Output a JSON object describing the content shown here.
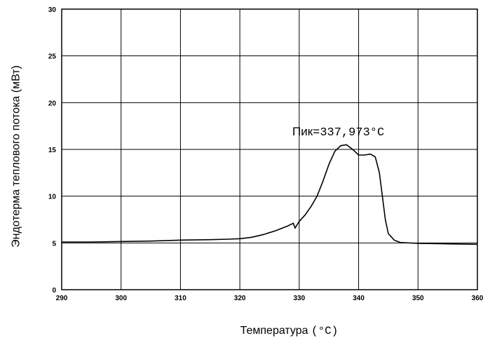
{
  "chart_data": {
    "type": "line",
    "title": "",
    "xlabel": "Температура",
    "xlabel_unit": "(°C)",
    "ylabel": "Эндотерма теплового потока (мВт)",
    "xlim": [
      290,
      360
    ],
    "ylim": [
      0,
      30
    ],
    "x_ticks": [
      290,
      300,
      310,
      320,
      330,
      340,
      350,
      360
    ],
    "y_ticks": [
      0,
      5,
      10,
      15,
      20,
      25,
      30
    ],
    "grid": true,
    "annotation": {
      "label": "Пик",
      "value": "=337,973°C",
      "x": 337.973
    },
    "series": [
      {
        "points": [
          [
            290,
            5.1
          ],
          [
            295,
            5.1
          ],
          [
            300,
            5.15
          ],
          [
            305,
            5.2
          ],
          [
            310,
            5.3
          ],
          [
            315,
            5.35
          ],
          [
            318,
            5.4
          ],
          [
            320,
            5.45
          ],
          [
            322,
            5.6
          ],
          [
            324,
            5.9
          ],
          [
            326,
            6.3
          ],
          [
            328,
            6.8
          ],
          [
            329,
            7.1
          ],
          [
            329.3,
            6.6
          ],
          [
            329.6,
            6.9
          ],
          [
            330,
            7.3
          ],
          [
            331,
            8.0
          ],
          [
            332,
            8.9
          ],
          [
            333,
            10.0
          ],
          [
            334,
            11.6
          ],
          [
            335,
            13.4
          ],
          [
            336,
            14.8
          ],
          [
            337,
            15.4
          ],
          [
            337.973,
            15.5
          ],
          [
            339,
            15.0
          ],
          [
            340,
            14.4
          ],
          [
            341,
            14.4
          ],
          [
            342,
            14.5
          ],
          [
            342.8,
            14.2
          ],
          [
            343.5,
            12.5
          ],
          [
            344,
            10.0
          ],
          [
            344.5,
            7.5
          ],
          [
            345,
            6.0
          ],
          [
            346,
            5.3
          ],
          [
            347,
            5.05
          ],
          [
            350,
            4.95
          ],
          [
            355,
            4.9
          ],
          [
            360,
            4.85
          ]
        ]
      }
    ]
  }
}
